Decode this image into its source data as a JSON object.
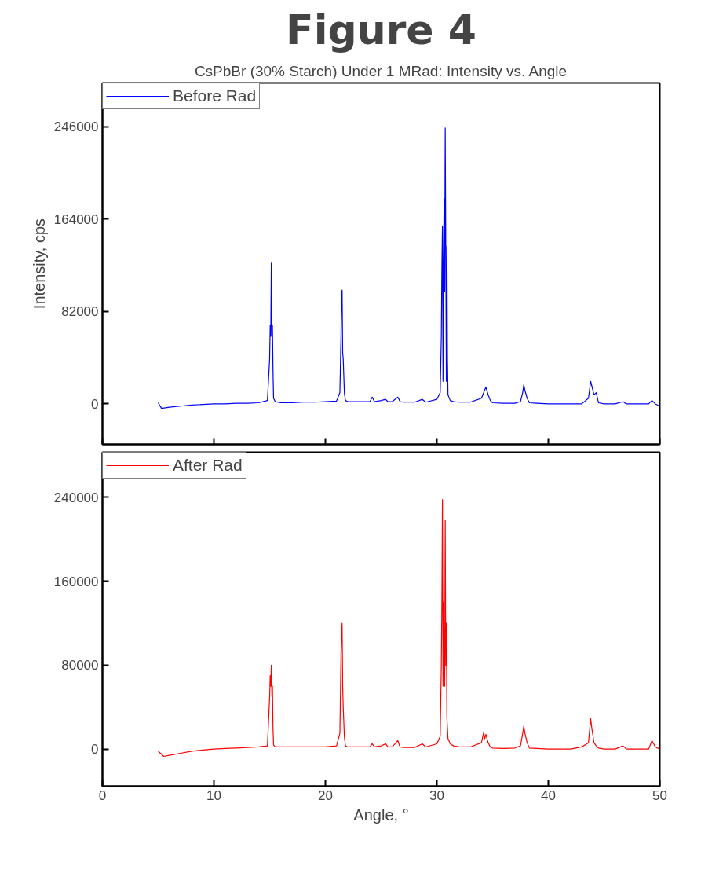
{
  "chart_data": [
    {
      "type": "line",
      "title": "Figure 4",
      "subtitle": "CsPbBr (30% Starch) Under 1 MRad: Intensity vs. Angle",
      "ylabel": "Intensity, cps",
      "xlim": [
        0,
        50
      ],
      "ylim": [
        -36000,
        285000
      ],
      "xticks": [
        0,
        10,
        20,
        30,
        40,
        50
      ],
      "yticks": [
        0,
        82000,
        164000,
        246000
      ],
      "tick_labels": "y",
      "legend": "top left",
      "grid": false,
      "series": [
        {
          "name": "Before Rad",
          "color": "#0000ff",
          "x": [
            5.0,
            5.3,
            6,
            7,
            8,
            9,
            10,
            11,
            12,
            13,
            14,
            14.8,
            15.0,
            15.05,
            15.1,
            15.15,
            15.2,
            15.25,
            15.3,
            15.35,
            15.5,
            16,
            17,
            18,
            19,
            20,
            21,
            21.3,
            21.4,
            21.45,
            21.5,
            21.55,
            21.6,
            21.7,
            21.8,
            22,
            23,
            24,
            24.2,
            24.4,
            25,
            25.4,
            25.6,
            26,
            26.5,
            26.7,
            27,
            28,
            28.7,
            29,
            30,
            30.3,
            30.4,
            30.45,
            30.5,
            30.55,
            30.6,
            30.65,
            30.7,
            30.75,
            30.8,
            30.85,
            30.9,
            30.95,
            31.0,
            31.2,
            31.5,
            32,
            33,
            34,
            34.2,
            34.4,
            34.6,
            34.8,
            35,
            36,
            37,
            37.5,
            37.7,
            37.8,
            37.9,
            38.1,
            38.3,
            39,
            40,
            41,
            42,
            43,
            43.6,
            43.8,
            43.9,
            44.1,
            44.3,
            44.5,
            45,
            46,
            46.7,
            47,
            48,
            49,
            49.3,
            49.6,
            50
          ],
          "values": [
            1000,
            -4000,
            -3000,
            -2000,
            -1000,
            -500,
            0,
            0,
            500,
            500,
            1000,
            3000,
            40000,
            70000,
            60000,
            125000,
            60000,
            70000,
            30000,
            5000,
            2000,
            1000,
            1000,
            1500,
            1500,
            2000,
            2500,
            10000,
            60000,
            98000,
            101000,
            45000,
            40000,
            10000,
            3000,
            2000,
            2000,
            2000,
            6000,
            2000,
            3000,
            4000,
            2000,
            2000,
            6000,
            2000,
            1500,
            1500,
            4000,
            1500,
            4000,
            10000,
            60000,
            120000,
            158000,
            20000,
            130000,
            182000,
            100000,
            245000,
            140000,
            20000,
            140000,
            40000,
            8000,
            3000,
            2000,
            1500,
            1500,
            5000,
            10000,
            15000,
            8000,
            3000,
            1000,
            500,
            500,
            2000,
            10000,
            17000,
            12000,
            5000,
            1000,
            500,
            0,
            0,
            0,
            0,
            5000,
            20000,
            16000,
            8000,
            10000,
            1000,
            0,
            0,
            2000,
            0,
            0,
            0,
            3000,
            0,
            -2000
          ]
        }
      ]
    },
    {
      "type": "line",
      "xlabel": "Angle, °",
      "xlim": [
        0,
        50
      ],
      "ylim": [
        -35500,
        283000
      ],
      "xticks": [
        0,
        10,
        20,
        30,
        40,
        50
      ],
      "yticks": [
        0,
        80000,
        160000,
        240000
      ],
      "legend": "top left",
      "grid": false,
      "series": [
        {
          "name": "After Rad",
          "color": "#ff0000",
          "x": [
            5.0,
            5.5,
            6,
            7,
            8,
            9,
            10,
            11,
            12,
            13,
            14,
            14.8,
            15.0,
            15.05,
            15.1,
            15.15,
            15.2,
            15.25,
            15.3,
            15.35,
            15.5,
            16,
            17,
            18,
            19,
            20,
            21,
            21.3,
            21.4,
            21.45,
            21.5,
            21.55,
            21.6,
            21.7,
            21.8,
            22,
            23,
            24,
            24.2,
            24.4,
            25,
            25.4,
            25.6,
            26,
            26.5,
            26.7,
            27,
            28,
            28.7,
            29,
            30,
            30.3,
            30.4,
            30.45,
            30.5,
            30.55,
            30.6,
            30.65,
            30.7,
            30.75,
            30.8,
            30.85,
            30.9,
            30.95,
            31.0,
            31.2,
            31.5,
            32,
            33,
            34,
            34.2,
            34.3,
            34.4,
            34.6,
            34.8,
            35,
            36,
            37,
            37.5,
            37.7,
            37.8,
            37.9,
            38.1,
            38.3,
            39,
            40,
            41,
            42,
            43,
            43.6,
            43.8,
            43.9,
            44.1,
            44.3,
            44.5,
            45,
            46,
            46.7,
            47,
            48,
            49,
            49.3,
            49.6,
            50
          ],
          "values": [
            -2000,
            -7000,
            -6000,
            -4000,
            -2000,
            -1000,
            0,
            500,
            1000,
            1500,
            2000,
            3000,
            50000,
            70000,
            60000,
            80000,
            50000,
            60000,
            20000,
            4000,
            2000,
            2000,
            2000,
            2000,
            2000,
            2000,
            3000,
            15000,
            90000,
            110000,
            120000,
            60000,
            40000,
            12000,
            3000,
            2000,
            2000,
            2000,
            5000,
            2000,
            3000,
            5000,
            2000,
            2000,
            8000,
            2000,
            1500,
            1500,
            5000,
            2000,
            5000,
            12000,
            80000,
            140000,
            238000,
            60000,
            140000,
            100000,
            60000,
            218000,
            80000,
            120000,
            30000,
            20000,
            10000,
            5000,
            3000,
            2000,
            2000,
            6000,
            16000,
            10000,
            14000,
            6000,
            2000,
            1000,
            500,
            1000,
            3000,
            15000,
            22000,
            15000,
            6000,
            1000,
            500,
            0,
            0,
            0,
            2000,
            6000,
            29000,
            20000,
            6000,
            3000,
            1000,
            0,
            0,
            3000,
            0,
            0,
            0,
            8000,
            2000,
            0
          ]
        }
      ]
    }
  ]
}
